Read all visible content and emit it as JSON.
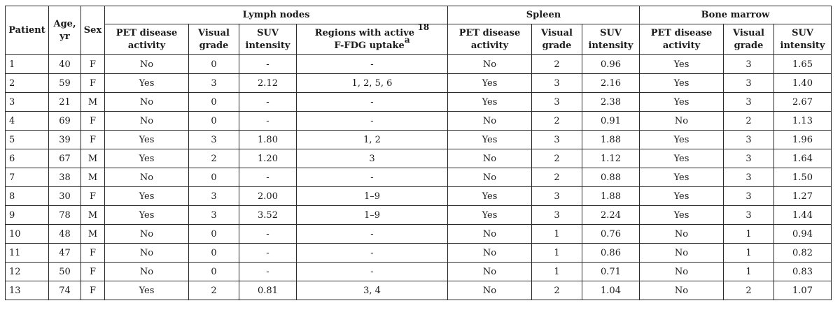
{
  "table": {
    "headers": {
      "patient": "Patient",
      "age": "Age, yr",
      "sex": "Sex",
      "groups": [
        "Lymph nodes",
        "Spleen",
        "Bone marrow"
      ],
      "pet_activity": "PET disease activity",
      "visual_grade": "Visual grade",
      "suv_intensity": "SUV intensity",
      "regions_main": "Regions with active ",
      "regions_sup": "18",
      "regions_tail": "F-FDG uptake",
      "regions_note": "a"
    },
    "rows": [
      [
        "1",
        "40",
        "F",
        "No",
        "0",
        "-",
        "-",
        "No",
        "2",
        "0.96",
        "Yes",
        "3",
        "1.65"
      ],
      [
        "2",
        "59",
        "F",
        "Yes",
        "3",
        "2.12",
        "1, 2, 5, 6",
        "Yes",
        "3",
        "2.16",
        "Yes",
        "3",
        "1.40"
      ],
      [
        "3",
        "21",
        "M",
        "No",
        "0",
        "-",
        "-",
        "Yes",
        "3",
        "2.38",
        "Yes",
        "3",
        "2.67"
      ],
      [
        "4",
        "69",
        "F",
        "No",
        "0",
        "-",
        "-",
        "No",
        "2",
        "0.91",
        "No",
        "2",
        "1.13"
      ],
      [
        "5",
        "39",
        "F",
        "Yes",
        "3",
        "1.80",
        "1, 2",
        "Yes",
        "3",
        "1.88",
        "Yes",
        "3",
        "1.96"
      ],
      [
        "6",
        "67",
        "M",
        "Yes",
        "2",
        "1.20",
        "3",
        "No",
        "2",
        "1.12",
        "Yes",
        "3",
        "1.64"
      ],
      [
        "7",
        "38",
        "M",
        "No",
        "0",
        "-",
        "-",
        "No",
        "2",
        "0.88",
        "Yes",
        "3",
        "1.50"
      ],
      [
        "8",
        "30",
        "F",
        "Yes",
        "3",
        "2.00",
        "1–9",
        "Yes",
        "3",
        "1.88",
        "Yes",
        "3",
        "1.27"
      ],
      [
        "9",
        "78",
        "M",
        "Yes",
        "3",
        "3.52",
        "1–9",
        "Yes",
        "3",
        "2.24",
        "Yes",
        "3",
        "1.44"
      ],
      [
        "10",
        "48",
        "M",
        "No",
        "0",
        "-",
        "-",
        "No",
        "1",
        "0.76",
        "No",
        "1",
        "0.94"
      ],
      [
        "11",
        "47",
        "F",
        "No",
        "0",
        "-",
        "-",
        "No",
        "1",
        "0.86",
        "No",
        "1",
        "0.82"
      ],
      [
        "12",
        "50",
        "F",
        "No",
        "0",
        "-",
        "-",
        "No",
        "1",
        "0.71",
        "No",
        "1",
        "0.83"
      ],
      [
        "13",
        "74",
        "F",
        "Yes",
        "2",
        "0.81",
        "3, 4",
        "No",
        "2",
        "1.04",
        "No",
        "2",
        "1.07"
      ]
    ]
  }
}
